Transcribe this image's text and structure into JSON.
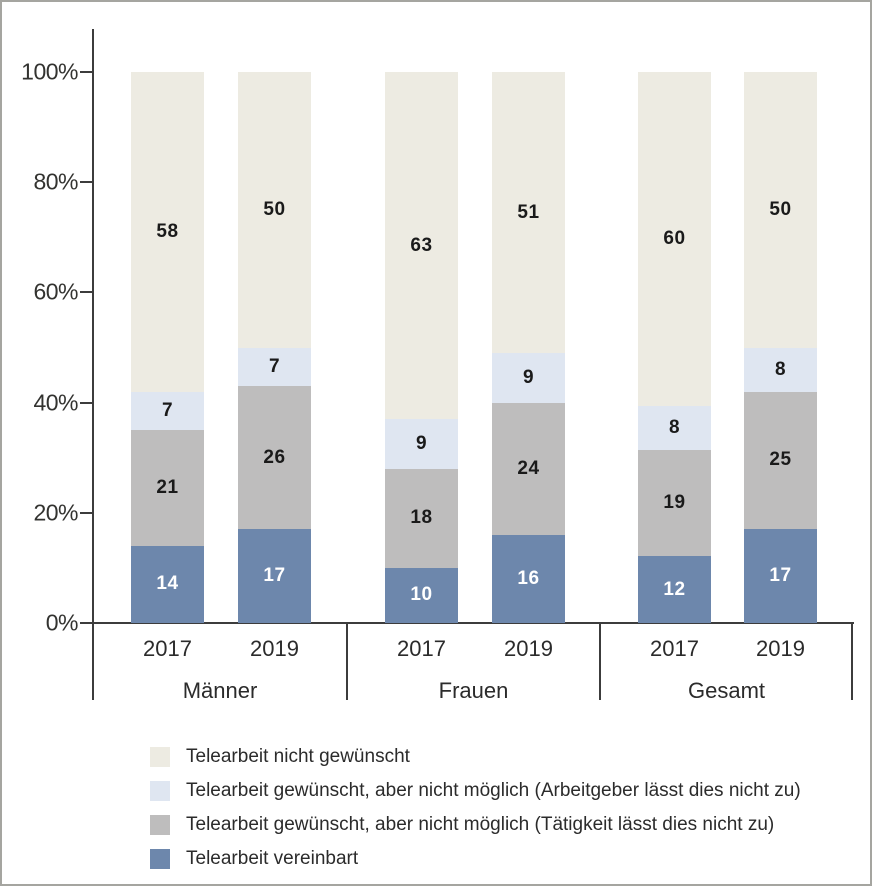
{
  "colors": {
    "frame_border": "#a5a5a0",
    "axis_line": "#3c3c3c",
    "tick_text": "#333330",
    "label_text": "#2b2b2b"
  },
  "chart_data": {
    "type": "bar",
    "stacked": true,
    "unit": "percent",
    "title": "",
    "grid": false,
    "legend_position": "bottom",
    "x_groups": [
      "Männer",
      "Frauen",
      "Gesamt"
    ],
    "x_years_per_group": [
      "2017",
      "2019"
    ],
    "categories": [
      "Männer 2017",
      "Männer 2019",
      "Frauen 2017",
      "Frauen 2019",
      "Gesamt 2017",
      "Gesamt 2019"
    ],
    "series": [
      {
        "name": "Telearbeit vereinbart",
        "color": "#6d87ac",
        "text_color": "#ffffff",
        "values": [
          14,
          17,
          10,
          16,
          12,
          17
        ]
      },
      {
        "name": "Telearbeit gewünscht, aber nicht möglich (Tätigkeit lässt dies nicht zu)",
        "color": "#bebdbd",
        "text_color": "#1a1a1a",
        "values": [
          21,
          26,
          18,
          24,
          19,
          25
        ]
      },
      {
        "name": "Telearbeit gewünscht, aber nicht möglich (Arbeitgeber lässt dies nicht zu)",
        "color": "#dfe6f1",
        "text_color": "#1a1a1a",
        "values": [
          7,
          7,
          9,
          9,
          8,
          8
        ]
      },
      {
        "name": "Telearbeit nicht gewünscht",
        "color": "#edebe2",
        "text_color": "#1a1a1a",
        "values": [
          58,
          50,
          63,
          51,
          60,
          50
        ]
      }
    ],
    "y_axis": {
      "min": 0,
      "max": 100,
      "tick_step": 20,
      "tick_labels": [
        "0%",
        "20%",
        "40%",
        "60%",
        "80%",
        "100%"
      ]
    },
    "legend": [
      {
        "label": "Telearbeit nicht gewünscht",
        "swatch": "#edebe2"
      },
      {
        "label": "Telearbeit gewünscht, aber nicht möglich (Arbeitgeber lässt dies nicht zu)",
        "swatch": "#dfe6f1"
      },
      {
        "label": "Telearbeit gewünscht, aber nicht möglich (Tätigkeit lässt dies nicht zu)",
        "swatch": "#bebdbd"
      },
      {
        "label": "Telearbeit vereinbart",
        "swatch": "#6d87ac"
      }
    ]
  }
}
